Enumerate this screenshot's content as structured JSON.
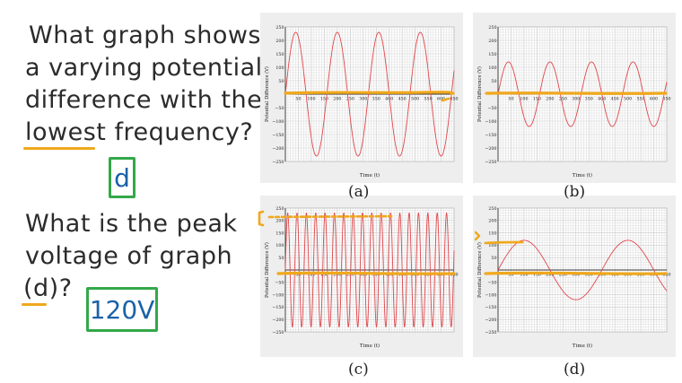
{
  "question1": {
    "lines": [
      "What graph shows",
      "a varying potential",
      "difference with the",
      "lowest frequency?"
    ],
    "answer": "d"
  },
  "question2": {
    "lines": [
      "What is the peak",
      "voltage of graph",
      "(d)?"
    ],
    "answer": "120V"
  },
  "colors": {
    "curve": "#e0474c",
    "highlight": "#f0a81c",
    "answer_box": "#33a84a",
    "answer_text": "#1a62a8",
    "grid": "#c8c8c8",
    "panel_bg": "#eeeeee"
  },
  "chart_data": [
    {
      "type": "line",
      "caption": "(a)",
      "xlabel": "Time (t)",
      "ylabel": "Potential Difference (V)",
      "xlim": [
        0,
        650
      ],
      "ylim": [
        -250,
        250
      ],
      "x_ticks": [
        50,
        100,
        150,
        200,
        250,
        300,
        350,
        400,
        450,
        500,
        550,
        600,
        650
      ],
      "y_ticks": [
        250,
        200,
        150,
        100,
        50,
        -50,
        -100,
        -150,
        -200,
        -250
      ],
      "amplitude": 230,
      "period": 160,
      "phase": 0
    },
    {
      "type": "line",
      "caption": "(b)",
      "xlabel": "Time (t)",
      "ylabel": "Potential Difference (V)",
      "xlim": [
        0,
        650
      ],
      "ylim": [
        -250,
        250
      ],
      "x_ticks": [
        50,
        100,
        150,
        200,
        250,
        300,
        350,
        400,
        450,
        500,
        550,
        600,
        650
      ],
      "y_ticks": [
        250,
        200,
        150,
        100,
        50,
        -50,
        -100,
        -150,
        -200,
        -250
      ],
      "amplitude": 120,
      "period": 160,
      "phase": 0
    },
    {
      "type": "line",
      "caption": "(c)",
      "xlabel": "Time (t)",
      "ylabel": "Potential Difference (V)",
      "xlim": [
        0,
        650
      ],
      "ylim": [
        -250,
        250
      ],
      "x_ticks": [
        50,
        100,
        150,
        200,
        250,
        300,
        350,
        400,
        450,
        500,
        550,
        600,
        650
      ],
      "y_ticks": [
        250,
        200,
        150,
        100,
        50,
        -50,
        -100,
        -150,
        -200,
        -250
      ],
      "amplitude": 230,
      "period": 36,
      "phase": 0
    },
    {
      "type": "line",
      "caption": "(d)",
      "xlabel": "Time (t)",
      "ylabel": "Potential Difference (V)",
      "xlim": [
        0,
        650
      ],
      "ylim": [
        -250,
        250
      ],
      "x_ticks": [
        50,
        100,
        150,
        200,
        250,
        300,
        350,
        400,
        450,
        500,
        550,
        600,
        650
      ],
      "y_ticks": [
        250,
        200,
        150,
        100,
        50,
        -50,
        -100,
        -150,
        -200,
        -250
      ],
      "amplitude": 120,
      "period": 400,
      "phase": 0
    }
  ]
}
